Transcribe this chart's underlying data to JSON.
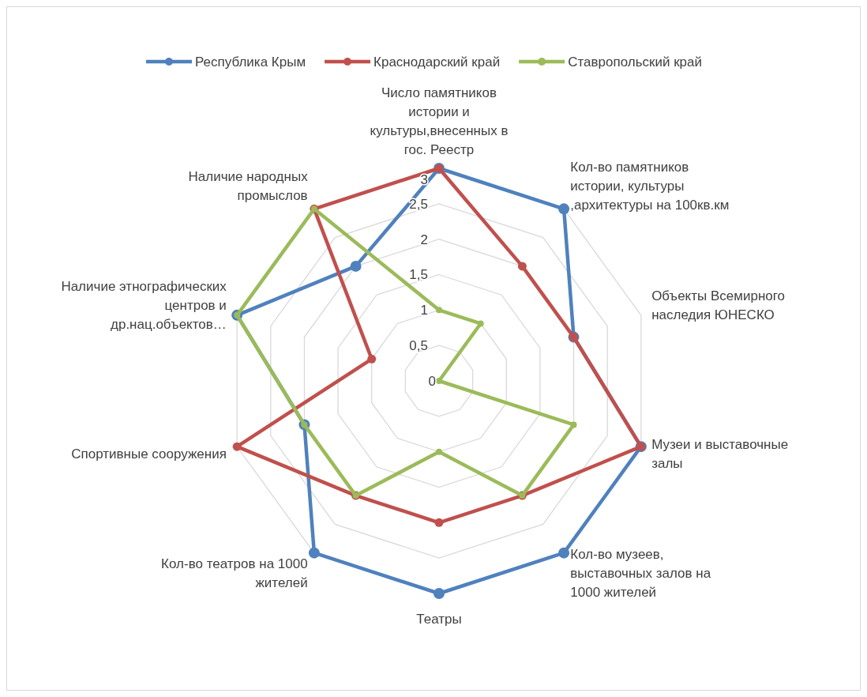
{
  "chart_data": {
    "type": "radar",
    "categories": [
      "Число памятников истории и культуры,внесенных в гос. Реестр",
      "Кол-во памятников истории, культуры ,архитектуры на 100кв.км",
      "Объекты Всемирного наследия ЮНЕСКО",
      "Музеи и выставочные залы",
      "Кол-во музеев, выставочных залов на 1000 жителей",
      "Театры",
      "Кол-во театров на 1000 жителей",
      "Спортивные сооружения",
      "Наличие этнографических центров и др.нац.объектов…",
      "Наличие народных промыслов"
    ],
    "series": [
      {
        "name": "Республика Крым",
        "color": "#4f81bd",
        "values": [
          3,
          3,
          2,
          3,
          3,
          3,
          3,
          2,
          3,
          2
        ]
      },
      {
        "name": "Краснодарский край",
        "color": "#c0504d",
        "values": [
          3,
          2,
          2,
          3,
          2,
          2,
          2,
          3,
          1,
          3
        ]
      },
      {
        "name": "Ставропольский край",
        "color": "#9bbb59",
        "values": [
          1,
          1,
          0,
          2,
          2,
          1,
          2,
          2,
          3,
          3
        ]
      }
    ],
    "ylim": [
      0,
      3
    ],
    "yticks": [
      0,
      {
        "value": 0.5,
        "label": "0,5"
      },
      1,
      {
        "value": 1.5,
        "label": "1,5"
      },
      2,
      {
        "value": 2.5,
        "label": "2,5"
      },
      3
    ],
    "grid": true,
    "legend": "top",
    "marker": "circle",
    "line_style": "solid"
  }
}
